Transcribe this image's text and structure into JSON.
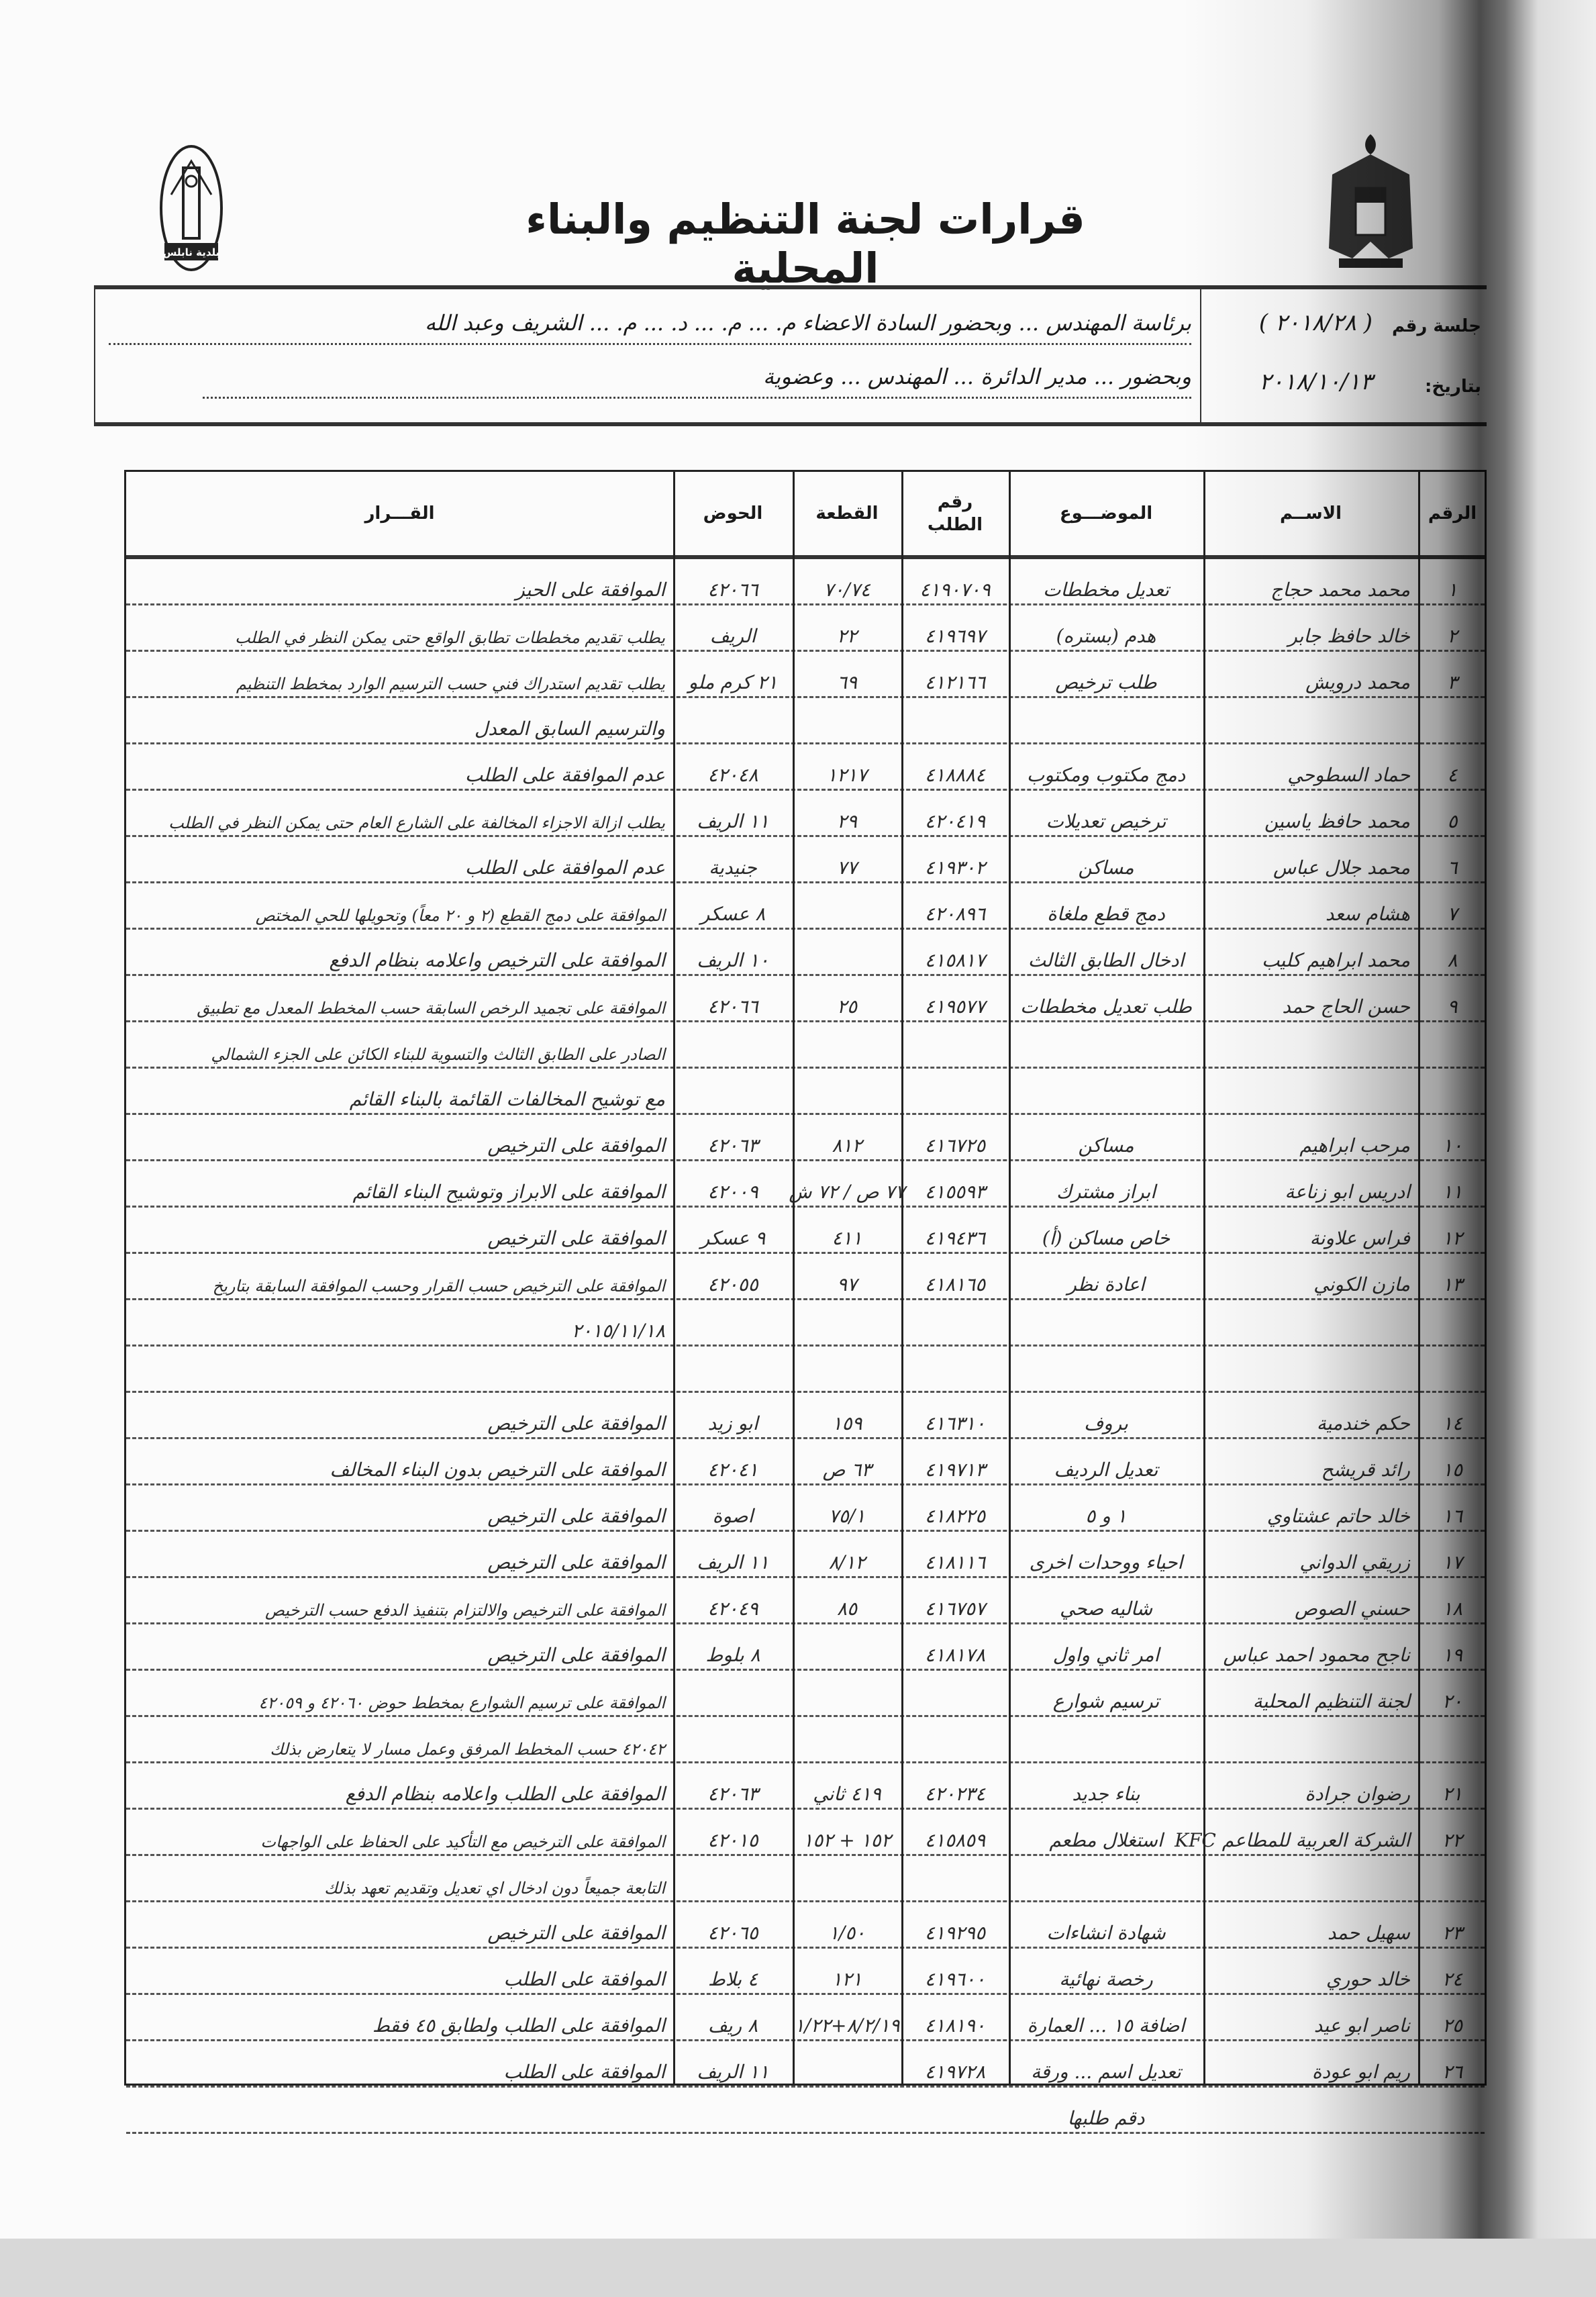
{
  "document": {
    "title": "قرارات لجنة التنظيم والبناء المحلية",
    "left_logo_text": "بلدية نابلس",
    "session": {
      "number_label": "جلسة رقم",
      "number_value": "( ٢٠١٨/٢٨ )",
      "date_label": "بتاريخ:",
      "date_value": "٢٠١٨/١٠/١٣",
      "attendance_line_1": "برئاسة المهندس ... وبحضور السادة الاعضاء م. ... م. ... د. ... م. ... الشريف وعبد الله",
      "attendance_line_2": "وبحضور ... مدير الدائرة ... المهندس ... وعضوية"
    }
  },
  "table": {
    "headers": {
      "no": "الرقم",
      "name": "الاســم",
      "subject": "الموضـــوع",
      "request_no": "رقم الطلب",
      "plot": "القطعة",
      "basin": "الحوض",
      "decision": "القـــرار"
    },
    "rows": [
      {
        "no": "١",
        "name": "محمد محمد حجاج",
        "subject": "تعديل مخططات",
        "request_no": "٤١٩٠٧٠٩",
        "plot": "٧٠/٧٤",
        "basin": "٤٢٠٦٦",
        "decision": "الموافقة على الحيز"
      },
      {
        "no": "٢",
        "name": "خالد حافظ جابر",
        "subject": "هدم (بستره)",
        "request_no": "٤١٩٦٩٧",
        "plot": "٢٢",
        "basin": "الريف",
        "decision": "يطلب تقديم مخططات تطابق الواقع حتى يمكن النظر في الطلب"
      },
      {
        "no": "٣",
        "name": "محمد درويش",
        "subject": "طلب ترخيص",
        "request_no": "٤١٢١٦٦",
        "plot": "٦٩",
        "basin": "٢١ كرم ملو",
        "decision": "يطلب تقديم استدراك فني حسب الترسيم الوارد بمخطط التنظيم"
      },
      {
        "no": "",
        "name": "",
        "subject": "",
        "request_no": "",
        "plot": "",
        "basin": "",
        "decision": "والترسيم السابق المعدل"
      },
      {
        "no": "٤",
        "name": "حماد السطوحي",
        "subject": "دمج مكتوب ومكتوب",
        "request_no": "٤١٨٨٨٤",
        "plot": "١٢١٧",
        "basin": "٤٢٠٤٨",
        "decision": "عدم الموافقة على الطلب"
      },
      {
        "no": "٥",
        "name": "محمد حافظ ياسين",
        "subject": "ترخيص تعديلات",
        "request_no": "٤٢٠٤١٩",
        "plot": "٢٩",
        "basin": "١١ الريف",
        "decision": "يطلب ازالة الاجزاء المخالفة على الشارع العام حتى يمكن النظر في الطلب"
      },
      {
        "no": "٦",
        "name": "محمد جلال عباس",
        "subject": "مساكن",
        "request_no": "٤١٩٣٠٢",
        "plot": "٧٧",
        "basin": "جنيدية",
        "decision": "عدم الموافقة على الطلب"
      },
      {
        "no": "٧",
        "name": "هشام سعد",
        "subject": "دمج قطع ملغاة",
        "request_no": "٤٢٠٨٩٦",
        "plot": "",
        "basin": "٨ عسكر",
        "decision": "الموافقة على دمج القطع (٢ و ٢٠ معاً) وتحويلها للحي المختص"
      },
      {
        "no": "٨",
        "name": "محمد ابراهيم كليب",
        "subject": "ادخال الطابق الثالث",
        "request_no": "٤١٥٨١٧",
        "plot": "",
        "basin": "١٠ الريف",
        "decision": "الموافقة على الترخيص واعلامه بنظام الدفع"
      },
      {
        "no": "٩",
        "name": "حسن الحاج حمد",
        "subject": "طلب تعديل مخططات",
        "request_no": "٤١٩٥٧٧",
        "plot": "٢٥",
        "basin": "٤٢٠٦٦",
        "decision": "الموافقة على تجميد الرخص السابقة حسب المخطط المعدل مع تطبيق"
      },
      {
        "no": "",
        "name": "",
        "subject": "",
        "request_no": "",
        "plot": "",
        "basin": "",
        "decision": "الصادر على الطابق الثالث والتسوية للبناء الكائن على الجزء الشمالي"
      },
      {
        "no": "",
        "name": "",
        "subject": "",
        "request_no": "",
        "plot": "",
        "basin": "",
        "decision": "مع توشيح المخالفات القائمة بالبناء القائم"
      },
      {
        "no": "١٠",
        "name": "مرحب ابراهيم",
        "subject": "مساكن",
        "request_no": "٤١٦٧٢٥",
        "plot": "٨١٢",
        "basin": "٤٢٠٦٣",
        "decision": "الموافقة على الترخيص"
      },
      {
        "no": "١١",
        "name": "ادريس ابو زناعة",
        "subject": "ابراز مشترك",
        "request_no": "٤١٥٥٩٣",
        "plot": "٧٧ ص / ٧٢ ش",
        "basin": "٤٢٠٠٩",
        "decision": "الموافقة على الابراز وتوشيح البناء القائم"
      },
      {
        "no": "١٢",
        "name": "فراس علاونة",
        "subject": "خاص مساكن (أ)",
        "request_no": "٤١٩٤٣٦",
        "plot": "٤١١",
        "basin": "٩ عسكر",
        "decision": "الموافقة على الترخيص"
      },
      {
        "no": "١٣",
        "name": "مازن الكوني",
        "subject": "اعادة نظر",
        "request_no": "٤١٨١٦٥",
        "plot": "٩٧",
        "basin": "٤٢٠٥٥",
        "decision": "الموافقة على الترخيص حسب القرار وحسب الموافقة السابقة بتاريخ"
      },
      {
        "no": "",
        "name": "",
        "subject": "",
        "request_no": "",
        "plot": "",
        "basin": "",
        "decision": "٢٠١٥/١١/١٨"
      },
      {
        "no": "",
        "name": "",
        "subject": "",
        "request_no": "",
        "plot": "",
        "basin": "",
        "decision": ""
      },
      {
        "no": "١٤",
        "name": "حكم خندمية",
        "subject": "بروف",
        "request_no": "٤١٦٣١٠",
        "plot": "١٥٩",
        "basin": "ابو زيد",
        "decision": "الموافقة على الترخيص"
      },
      {
        "no": "١٥",
        "name": "رائد قريشح",
        "subject": "تعديل الرديف",
        "request_no": "٤١٩٧١٣",
        "plot": "٦٣ ص",
        "basin": "٤٢٠٤١",
        "decision": "الموافقة على الترخيص بدون البناء المخالف"
      },
      {
        "no": "١٦",
        "name": "خالد حاتم عشتاوي",
        "subject": "١ و ٥",
        "request_no": "٤١٨٢٢٥",
        "plot": "٧٥/١",
        "basin": "اصوة",
        "decision": "الموافقة على الترخيص"
      },
      {
        "no": "١٧",
        "name": "زريقي الدواني",
        "subject": "احياء ووحدات اخرى",
        "request_no": "٤١٨١١٦",
        "plot": "٨/١٢",
        "basin": "١١ الريف",
        "decision": "الموافقة على الترخيص"
      },
      {
        "no": "١٨",
        "name": "حسني الصوص",
        "subject": "شاليه صحي",
        "request_no": "٤١٦٧٥٧",
        "plot": "٨٥",
        "basin": "٤٢٠٤٩",
        "decision": "الموافقة على الترخيص والالتزام بتنفيذ الدفع حسب الترخيص"
      },
      {
        "no": "١٩",
        "name": "ناجح محمود احمد عباس",
        "subject": "امر ثاني واول",
        "request_no": "٤١٨١٧٨",
        "plot": "",
        "basin": "٨ بلوط",
        "decision": "الموافقة على الترخيص"
      },
      {
        "no": "٢٠",
        "name": "لجنة التنظيم المحلية",
        "subject": "ترسيم شوارع",
        "request_no": "",
        "plot": "",
        "basin": "",
        "decision": "الموافقة على ترسيم الشوارع بمخطط حوض ٤٢٠٦٠ و ٤٢٠٥٩"
      },
      {
        "no": "",
        "name": "",
        "subject": "",
        "request_no": "",
        "plot": "",
        "basin": "",
        "decision": "٤٢٠٤٢ حسب المخطط المرفق وعمل مسار لا يتعارض بذلك"
      },
      {
        "no": "٢١",
        "name": "رضوان جرادة",
        "subject": "بناء جديد",
        "request_no": "٤٢٠٢٣٤",
        "plot": "٤١٩ ثاني",
        "basin": "٤٢٠٦٣",
        "decision": "الموافقة على الطلب واعلامه بنظام الدفع"
      },
      {
        "no": "٢٢",
        "name": "الشركة العربية للمطاعم KFC",
        "subject": "استغلال مطعم",
        "request_no": "٤١٥٨٥٩",
        "plot": "١٥٢ + ١٥٢",
        "basin": "٤٢٠١٥",
        "decision": "الموافقة على الترخيص مع التأكيد على الحفاظ على الواجهات"
      },
      {
        "no": "",
        "name": "",
        "subject": "",
        "request_no": "",
        "plot": "",
        "basin": "",
        "decision": "التابعة جميعاً دون ادخال اي تعديل وتقديم تعهد بذلك"
      },
      {
        "no": "٢٣",
        "name": "سهيل حمد",
        "subject": "شهادة انشاءات",
        "request_no": "٤١٩٢٩٥",
        "plot": "١/٥٠",
        "basin": "٤٢٠٦٥",
        "decision": "الموافقة على الترخيص"
      },
      {
        "no": "٢٤",
        "name": "خالد حوري",
        "subject": "رخصة نهائية",
        "request_no": "٤١٩٦٠٠",
        "plot": "١٢١",
        "basin": "٤ بلاط",
        "decision": "الموافقة على الطلب"
      },
      {
        "no": "٢٥",
        "name": "ناصر ابو عيد",
        "subject": "اضافة ١٥ ... العمارة",
        "request_no": "٤١٨١٩٠",
        "plot": "٨/٢/١٩+١/٢٢",
        "basin": "٨ ريف",
        "decision": "الموافقة على الطلب ولطابق ٤٥ فقط"
      },
      {
        "no": "٢٦",
        "name": "ريم ابو عودة",
        "subject": "تعديل اسم ... ورقة",
        "request_no": "٤١٩٧٢٨",
        "plot": "",
        "basin": "١١ الريف",
        "decision": "الموافقة على الطلب"
      },
      {
        "no": "",
        "name": "",
        "subject": "دقم طلبها",
        "request_no": "",
        "plot": "",
        "basin": "",
        "decision": ""
      }
    ]
  }
}
